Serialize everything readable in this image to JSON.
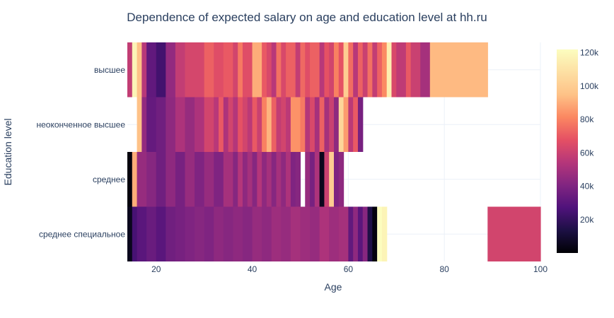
{
  "chart_data": {
    "type": "heatmap",
    "title": "Dependence of expected salary on age and education level at hh.ru",
    "xlabel": "Age",
    "ylabel": "Education level",
    "xlim": [
      14,
      100
    ],
    "x_ticks": [
      "20",
      "40",
      "60",
      "80",
      "100"
    ],
    "x_tick_values": [
      20,
      40,
      60,
      80,
      100
    ],
    "rows": [
      "высшее",
      "неоконченное высшее",
      "среднее",
      "среднее специальное"
    ],
    "grid": true,
    "legend": "colorbar right",
    "colorbar": {
      "min": 0,
      "max": 122000,
      "ticks": [
        "20k",
        "40k",
        "60k",
        "80k",
        "100k",
        "120k"
      ],
      "tick_values": [
        20000,
        40000,
        60000,
        80000,
        100000,
        120000
      ],
      "colorscale": "magma"
    },
    "series": [
      {
        "row": "высшее",
        "segments": [
          [
            14,
            15,
            58000
          ],
          [
            15,
            16,
            118000
          ],
          [
            16,
            17,
            95000
          ],
          [
            17,
            18,
            55000
          ],
          [
            18,
            20,
            32000
          ],
          [
            20,
            22,
            24000
          ],
          [
            22,
            24,
            45000
          ],
          [
            24,
            26,
            58000
          ],
          [
            26,
            30,
            63000
          ],
          [
            30,
            32,
            72000
          ],
          [
            32,
            34,
            66000
          ],
          [
            34,
            36,
            70000
          ],
          [
            36,
            37,
            62000
          ],
          [
            37,
            38,
            78000
          ],
          [
            38,
            40,
            66000
          ],
          [
            40,
            42,
            90000
          ],
          [
            42,
            43,
            70000
          ],
          [
            43,
            44,
            64000
          ],
          [
            44,
            45,
            55000
          ],
          [
            45,
            46,
            76000
          ],
          [
            46,
            47,
            64000
          ],
          [
            47,
            49,
            72000
          ],
          [
            49,
            50,
            58000
          ],
          [
            50,
            51,
            74000
          ],
          [
            51,
            52,
            66000
          ],
          [
            52,
            54,
            72000
          ],
          [
            54,
            55,
            55000
          ],
          [
            55,
            56,
            68000
          ],
          [
            56,
            57,
            62000
          ],
          [
            57,
            58,
            80000
          ],
          [
            58,
            59,
            68000
          ],
          [
            59,
            60,
            100000
          ],
          [
            60,
            61,
            75000
          ],
          [
            61,
            62,
            55000
          ],
          [
            62,
            63,
            72000
          ],
          [
            63,
            64,
            60000
          ],
          [
            64,
            65,
            76000
          ],
          [
            65,
            66,
            58000
          ],
          [
            66,
            67,
            72000
          ],
          [
            67,
            68,
            82000
          ],
          [
            68,
            69,
            115000
          ],
          [
            69,
            70,
            64000
          ],
          [
            70,
            72,
            57000
          ],
          [
            72,
            73,
            70000
          ],
          [
            73,
            75,
            60000
          ],
          [
            75,
            77,
            50000
          ],
          [
            77,
            89,
            93000
          ]
        ]
      },
      {
        "row": "неоконченное высшее",
        "segments": [
          [
            16,
            17,
            95000
          ],
          [
            17,
            18,
            45000
          ],
          [
            18,
            20,
            33000
          ],
          [
            20,
            22,
            36000
          ],
          [
            22,
            24,
            44000
          ],
          [
            24,
            26,
            52000
          ],
          [
            26,
            28,
            46000
          ],
          [
            28,
            30,
            52000
          ],
          [
            30,
            32,
            62000
          ],
          [
            32,
            33,
            55000
          ],
          [
            33,
            34,
            70000
          ],
          [
            34,
            35,
            52000
          ],
          [
            35,
            36,
            62000
          ],
          [
            36,
            37,
            54000
          ],
          [
            37,
            38,
            68000
          ],
          [
            38,
            39,
            62000
          ],
          [
            39,
            40,
            56000
          ],
          [
            40,
            41,
            70000
          ],
          [
            41,
            42,
            60000
          ],
          [
            42,
            43,
            80000
          ],
          [
            43,
            44,
            92000
          ],
          [
            44,
            45,
            72000
          ],
          [
            45,
            46,
            58000
          ],
          [
            46,
            47,
            62000
          ],
          [
            47,
            48,
            56000
          ],
          [
            48,
            50,
            84000
          ],
          [
            50,
            51,
            78000
          ],
          [
            51,
            52,
            54000
          ],
          [
            52,
            53,
            64000
          ],
          [
            53,
            54,
            50000
          ],
          [
            54,
            55,
            72000
          ],
          [
            55,
            56,
            50000
          ],
          [
            56,
            57,
            60000
          ],
          [
            57,
            58,
            44000
          ],
          [
            58,
            59,
            104000
          ],
          [
            59,
            60,
            86000
          ],
          [
            60,
            61,
            56000
          ],
          [
            61,
            62,
            70000
          ],
          [
            62,
            63,
            38000
          ]
        ]
      },
      {
        "row": "среднее",
        "segments": [
          [
            14,
            15,
            2000
          ],
          [
            15,
            16,
            90000
          ],
          [
            16,
            18,
            46000
          ],
          [
            18,
            20,
            42000
          ],
          [
            20,
            22,
            36000
          ],
          [
            22,
            24,
            44000
          ],
          [
            24,
            26,
            38000
          ],
          [
            26,
            28,
            46000
          ],
          [
            28,
            30,
            40000
          ],
          [
            30,
            32,
            46000
          ],
          [
            32,
            34,
            40000
          ],
          [
            34,
            36,
            50000
          ],
          [
            36,
            37,
            42000
          ],
          [
            37,
            38,
            54000
          ],
          [
            38,
            39,
            44000
          ],
          [
            39,
            40,
            50000
          ],
          [
            40,
            41,
            42000
          ],
          [
            41,
            42,
            54000
          ],
          [
            42,
            43,
            44000
          ],
          [
            43,
            44,
            50000
          ],
          [
            44,
            45,
            42000
          ],
          [
            45,
            46,
            50000
          ],
          [
            46,
            47,
            44000
          ],
          [
            47,
            48,
            52000
          ],
          [
            48,
            49,
            40000
          ],
          [
            49,
            50,
            42000
          ],
          [
            51,
            52,
            46000
          ],
          [
            52,
            53,
            38000
          ],
          [
            53,
            54,
            52000
          ],
          [
            54,
            55,
            5000
          ],
          [
            55,
            56,
            60000
          ],
          [
            56,
            57,
            100000
          ],
          [
            57,
            58,
            40000
          ],
          [
            58,
            59,
            44000
          ]
        ]
      },
      {
        "row": "среднее специальное",
        "segments": [
          [
            14,
            15,
            5000
          ],
          [
            15,
            16,
            25000
          ],
          [
            16,
            18,
            30000
          ],
          [
            18,
            20,
            34000
          ],
          [
            20,
            22,
            30000
          ],
          [
            22,
            24,
            36000
          ],
          [
            24,
            26,
            38000
          ],
          [
            26,
            28,
            40000
          ],
          [
            28,
            30,
            42000
          ],
          [
            30,
            32,
            40000
          ],
          [
            32,
            34,
            44000
          ],
          [
            34,
            36,
            42000
          ],
          [
            36,
            38,
            44000
          ],
          [
            38,
            40,
            42000
          ],
          [
            40,
            42,
            46000
          ],
          [
            42,
            44,
            44000
          ],
          [
            44,
            46,
            48000
          ],
          [
            46,
            48,
            46000
          ],
          [
            48,
            50,
            50000
          ],
          [
            50,
            52,
            48000
          ],
          [
            52,
            54,
            46000
          ],
          [
            54,
            56,
            52000
          ],
          [
            56,
            58,
            48000
          ],
          [
            58,
            60,
            50000
          ],
          [
            60,
            61,
            32000
          ],
          [
            61,
            62,
            44000
          ],
          [
            62,
            63,
            30000
          ],
          [
            63,
            64,
            42000
          ],
          [
            64,
            65,
            14000
          ],
          [
            65,
            66,
            2000
          ],
          [
            66,
            67,
            122000
          ],
          [
            67,
            68,
            118000
          ],
          [
            89,
            101,
            62000
          ]
        ]
      }
    ]
  }
}
